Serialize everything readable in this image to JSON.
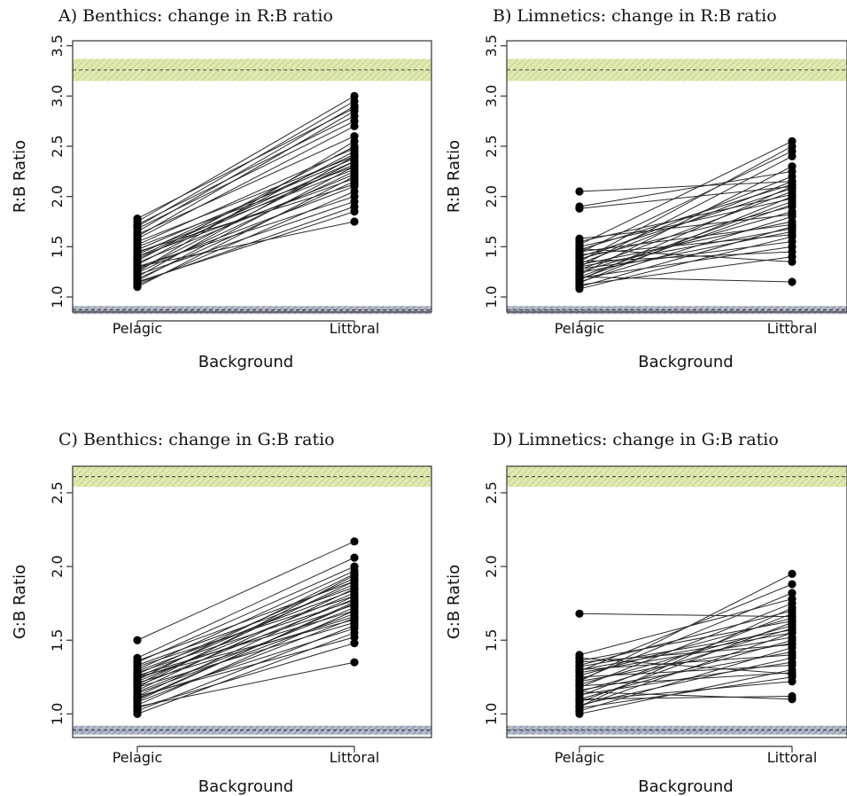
{
  "chart_data": [
    {
      "type": "line",
      "title": "A) Benthics: change in R:B ratio",
      "xlabel": "Background",
      "ylabel": "R:B Ratio",
      "categories": [
        "Pelagic",
        "Littoral"
      ],
      "yticks": [
        "1.0",
        "1.5",
        "2.0",
        "2.5",
        "3.0",
        "3.5"
      ],
      "ylim": [
        0.85,
        3.55
      ],
      "bands": [
        {
          "center": 3.26,
          "low": 3.15,
          "high": 3.37,
          "color": "#d7e4a6",
          "line": "dashed"
        },
        {
          "center": 0.87,
          "low": 0.83,
          "high": 0.91,
          "color": "#9ca3b3",
          "line": "dashed"
        }
      ],
      "pairs": [
        [
          1.1,
          2.2
        ],
        [
          1.12,
          2.05
        ],
        [
          1.14,
          1.9
        ],
        [
          1.16,
          2.3
        ],
        [
          1.18,
          2.15
        ],
        [
          1.2,
          2.4
        ],
        [
          1.22,
          1.95
        ],
        [
          1.24,
          2.25
        ],
        [
          1.26,
          2.35
        ],
        [
          1.28,
          2.1
        ],
        [
          1.3,
          2.0
        ],
        [
          1.32,
          2.45
        ],
        [
          1.34,
          2.22
        ],
        [
          1.36,
          2.5
        ],
        [
          1.38,
          2.32
        ],
        [
          1.4,
          2.18
        ],
        [
          1.42,
          2.42
        ],
        [
          1.44,
          2.27
        ],
        [
          1.45,
          2.12
        ],
        [
          1.47,
          2.38
        ],
        [
          1.5,
          2.3
        ],
        [
          1.52,
          2.48
        ],
        [
          1.55,
          2.4
        ],
        [
          1.58,
          2.7
        ],
        [
          1.6,
          2.85
        ],
        [
          1.62,
          2.6
        ],
        [
          1.65,
          2.9
        ],
        [
          1.68,
          2.75
        ],
        [
          1.7,
          2.95
        ],
        [
          1.72,
          2.8
        ],
        [
          1.75,
          3.0
        ],
        [
          1.78,
          2.88
        ],
        [
          1.3,
          1.75
        ],
        [
          1.15,
          1.85
        ],
        [
          1.4,
          2.35
        ],
        [
          1.25,
          2.55
        ]
      ]
    },
    {
      "type": "line",
      "title": "B) Limnetics: change in R:B ratio",
      "xlabel": "Background",
      "ylabel": "R:B Ratio",
      "categories": [
        "Pelagic",
        "Littoral"
      ],
      "yticks": [
        "1.0",
        "1.5",
        "2.0",
        "2.5",
        "3.0",
        "3.5"
      ],
      "ylim": [
        0.85,
        3.55
      ],
      "bands": [
        {
          "center": 3.26,
          "low": 3.15,
          "high": 3.37,
          "color": "#d7e4a6",
          "line": "dashed"
        },
        {
          "center": 0.87,
          "low": 0.83,
          "high": 0.91,
          "color": "#9ca3b3",
          "line": "dashed"
        }
      ],
      "pairs": [
        [
          1.08,
          1.6
        ],
        [
          1.1,
          1.7
        ],
        [
          1.12,
          1.4
        ],
        [
          1.14,
          2.0
        ],
        [
          1.15,
          1.8
        ],
        [
          1.17,
          2.1
        ],
        [
          1.19,
          1.5
        ],
        [
          1.2,
          1.95
        ],
        [
          1.22,
          2.3
        ],
        [
          1.24,
          1.65
        ],
        [
          1.25,
          1.85
        ],
        [
          1.27,
          2.05
        ],
        [
          1.28,
          1.55
        ],
        [
          1.3,
          2.4
        ],
        [
          1.32,
          1.75
        ],
        [
          1.33,
          2.15
        ],
        [
          1.35,
          1.45
        ],
        [
          1.37,
          2.2
        ],
        [
          1.38,
          1.9
        ],
        [
          1.4,
          2.08
        ],
        [
          1.42,
          1.62
        ],
        [
          1.44,
          2.45
        ],
        [
          1.45,
          1.72
        ],
        [
          1.47,
          2.12
        ],
        [
          1.48,
          1.35
        ],
        [
          1.5,
          1.98
        ],
        [
          1.52,
          2.55
        ],
        [
          1.55,
          2.02
        ],
        [
          1.58,
          1.82
        ],
        [
          1.88,
          2.1
        ],
        [
          1.9,
          2.25
        ],
        [
          2.05,
          2.15
        ],
        [
          1.2,
          1.15
        ],
        [
          1.35,
          2.5
        ],
        [
          1.3,
          1.68
        ],
        [
          1.18,
          1.92
        ]
      ]
    },
    {
      "type": "line",
      "title": "C) Benthics: change in G:B ratio",
      "xlabel": "Background",
      "ylabel": "G:B Ratio",
      "categories": [
        "Pelagic",
        "Littoral"
      ],
      "yticks": [
        "1.0",
        "1.5",
        "2.0",
        "2.5"
      ],
      "ylim": [
        0.84,
        2.68
      ],
      "bands": [
        {
          "center": 2.61,
          "low": 2.54,
          "high": 2.68,
          "color": "#d7e4a6",
          "line": "dashed"
        },
        {
          "center": 0.89,
          "low": 0.86,
          "high": 0.92,
          "color": "#9ca3b3",
          "line": "dashed"
        }
      ],
      "pairs": [
        [
          1.0,
          1.55
        ],
        [
          1.02,
          1.6
        ],
        [
          1.04,
          1.48
        ],
        [
          1.06,
          1.7
        ],
        [
          1.08,
          1.65
        ],
        [
          1.1,
          1.75
        ],
        [
          1.11,
          1.58
        ],
        [
          1.12,
          1.8
        ],
        [
          1.14,
          1.68
        ],
        [
          1.15,
          1.72
        ],
        [
          1.16,
          1.85
        ],
        [
          1.18,
          1.62
        ],
        [
          1.19,
          1.78
        ],
        [
          1.2,
          1.9
        ],
        [
          1.21,
          1.66
        ],
        [
          1.22,
          1.82
        ],
        [
          1.23,
          1.95
        ],
        [
          1.24,
          1.74
        ],
        [
          1.25,
          1.88
        ],
        [
          1.26,
          1.7
        ],
        [
          1.27,
          1.92
        ],
        [
          1.28,
          1.77
        ],
        [
          1.29,
          1.84
        ],
        [
          1.3,
          1.97
        ],
        [
          1.32,
          1.8
        ],
        [
          1.33,
          1.86
        ],
        [
          1.35,
          2.0
        ],
        [
          1.36,
          1.9
        ],
        [
          1.38,
          2.06
        ],
        [
          1.5,
          2.17
        ],
        [
          1.05,
          1.35
        ],
        [
          1.12,
          1.52
        ],
        [
          1.18,
          1.94
        ],
        [
          1.25,
          1.64
        ],
        [
          1.09,
          1.76
        ]
      ]
    },
    {
      "type": "line",
      "title": "D) Limnetics: change in G:B ratio",
      "xlabel": "Background",
      "ylabel": "G:B Ratio",
      "categories": [
        "Pelagic",
        "Littoral"
      ],
      "yticks": [
        "1.0",
        "1.5",
        "2.0",
        "2.5"
      ],
      "ylim": [
        0.84,
        2.68
      ],
      "bands": [
        {
          "center": 2.61,
          "low": 2.54,
          "high": 2.68,
          "color": "#d7e4a6",
          "line": "dashed"
        },
        {
          "center": 0.89,
          "low": 0.86,
          "high": 0.92,
          "color": "#9ca3b3",
          "line": "dashed"
        }
      ],
      "pairs": [
        [
          1.0,
          1.3
        ],
        [
          1.02,
          1.45
        ],
        [
          1.04,
          1.25
        ],
        [
          1.05,
          1.55
        ],
        [
          1.06,
          1.38
        ],
        [
          1.08,
          1.62
        ],
        [
          1.09,
          1.22
        ],
        [
          1.1,
          1.5
        ],
        [
          1.12,
          1.68
        ],
        [
          1.13,
          1.35
        ],
        [
          1.15,
          1.58
        ],
        [
          1.16,
          1.42
        ],
        [
          1.18,
          1.75
        ],
        [
          1.19,
          1.28
        ],
        [
          1.2,
          1.6
        ],
        [
          1.22,
          1.48
        ],
        [
          1.23,
          1.82
        ],
        [
          1.25,
          1.33
        ],
        [
          1.26,
          1.65
        ],
        [
          1.28,
          1.52
        ],
        [
          1.29,
          1.88
        ],
        [
          1.3,
          1.4
        ],
        [
          1.32,
          1.57
        ],
        [
          1.33,
          1.7
        ],
        [
          1.35,
          1.47
        ],
        [
          1.36,
          1.63
        ],
        [
          1.38,
          1.27
        ],
        [
          1.4,
          1.78
        ],
        [
          1.68,
          1.66
        ],
        [
          1.1,
          1.12
        ],
        [
          1.15,
          1.1
        ],
        [
          1.22,
          1.95
        ],
        [
          1.05,
          1.72
        ],
        [
          1.3,
          1.55
        ]
      ]
    }
  ]
}
